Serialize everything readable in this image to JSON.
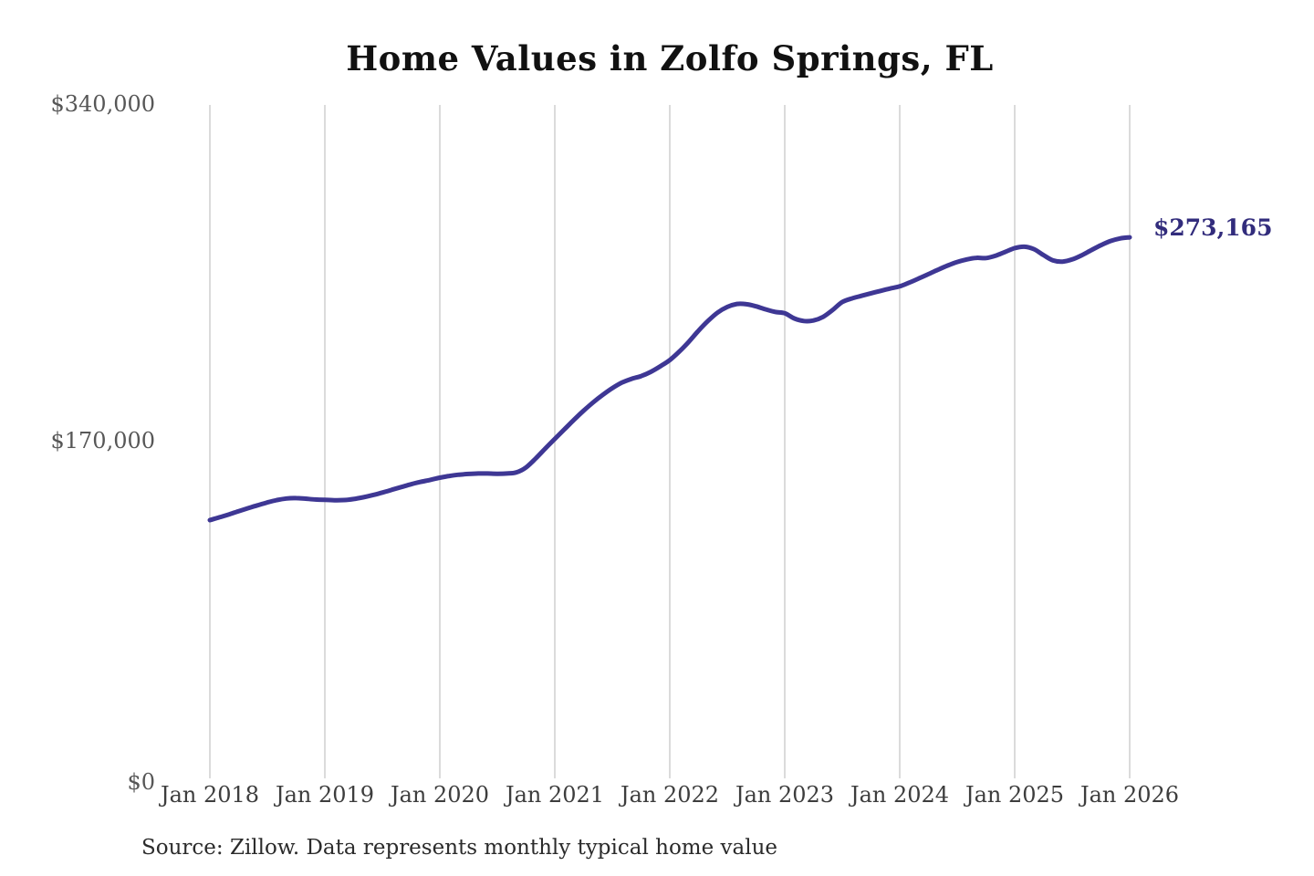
{
  "title": "Home Values in Zolfo Springs, FL",
  "source_note": "Source: Zillow. Data represents monthly typical home value",
  "colors": {
    "line": "#3e3794",
    "end_label": "#322c7c",
    "grid": "#cfcfcf",
    "title_text": "#111111",
    "y_tick_text": "#575757",
    "x_tick_text": "#3d3d3d",
    "source_text": "#2b2b2b"
  },
  "chart_data": {
    "type": "line",
    "title": "Home Values in Zolfo Springs, FL",
    "xlabel": "",
    "ylabel": "",
    "ylim": [
      0,
      340000
    ],
    "y_ticks": [
      0,
      170000,
      340000
    ],
    "y_tick_labels": [
      "$0",
      "$170,000",
      "$340,000"
    ],
    "x_tick_labels": [
      "Jan 2018",
      "Jan 2019",
      "Jan 2020",
      "Jan 2021",
      "Jan 2022",
      "Jan 2023",
      "Jan 2024",
      "Jan 2025",
      "Jan 2026"
    ],
    "grid": "vertical-only",
    "legend": "none",
    "end_annotation": {
      "text": "$273,165",
      "value": 273165,
      "month": "2026-01"
    },
    "series_name": "Typical home value (monthly)",
    "months": [
      "2018-01",
      "2018-02",
      "2018-03",
      "2018-04",
      "2018-05",
      "2018-06",
      "2018-07",
      "2018-08",
      "2018-09",
      "2018-10",
      "2018-11",
      "2018-12",
      "2019-01",
      "2019-02",
      "2019-03",
      "2019-04",
      "2019-05",
      "2019-06",
      "2019-07",
      "2019-08",
      "2019-09",
      "2019-10",
      "2019-11",
      "2019-12",
      "2020-01",
      "2020-02",
      "2020-03",
      "2020-04",
      "2020-05",
      "2020-06",
      "2020-07",
      "2020-08",
      "2020-09",
      "2020-10",
      "2020-11",
      "2020-12",
      "2021-01",
      "2021-02",
      "2021-03",
      "2021-04",
      "2021-05",
      "2021-06",
      "2021-07",
      "2021-08",
      "2021-09",
      "2021-10",
      "2021-11",
      "2021-12",
      "2022-01",
      "2022-02",
      "2022-03",
      "2022-04",
      "2022-05",
      "2022-06",
      "2022-07",
      "2022-08",
      "2022-09",
      "2022-10",
      "2022-11",
      "2022-12",
      "2023-01",
      "2023-02",
      "2023-03",
      "2023-04",
      "2023-05",
      "2023-06",
      "2023-07",
      "2023-08",
      "2023-09",
      "2023-10",
      "2023-11",
      "2023-12",
      "2024-01",
      "2024-02",
      "2024-03",
      "2024-04",
      "2024-05",
      "2024-06",
      "2024-07",
      "2024-08",
      "2024-09",
      "2024-10",
      "2024-11",
      "2024-12",
      "2025-01",
      "2025-02",
      "2025-03",
      "2025-04",
      "2025-05",
      "2025-06",
      "2025-07",
      "2025-08",
      "2025-09",
      "2025-10",
      "2025-11",
      "2025-12",
      "2026-01"
    ],
    "values": [
      130400,
      131800,
      133300,
      134900,
      136400,
      137900,
      139300,
      140500,
      141300,
      141500,
      141200,
      140800,
      140600,
      140400,
      140500,
      141000,
      141900,
      143000,
      144300,
      145700,
      147100,
      148500,
      149700,
      150700,
      151800,
      152700,
      153300,
      153700,
      153900,
      153900,
      153800,
      153900,
      154500,
      157000,
      161500,
      166500,
      171400,
      176200,
      181000,
      185600,
      189800,
      193600,
      197000,
      199800,
      201700,
      203100,
      205200,
      208000,
      211200,
      215500,
      220500,
      226000,
      231000,
      235200,
      238000,
      239500,
      239400,
      238300,
      236800,
      235500,
      234800,
      232200,
      230900,
      231200,
      233000,
      236500,
      240500,
      242300,
      243600,
      244900,
      246100,
      247300,
      248400,
      250300,
      252400,
      254600,
      256800,
      258900,
      260700,
      262000,
      262800,
      262700,
      263900,
      265800,
      267700,
      268400,
      267200,
      264200,
      261500,
      260900,
      262000,
      264100,
      266700,
      269200,
      271300,
      272600,
      273165
    ]
  }
}
